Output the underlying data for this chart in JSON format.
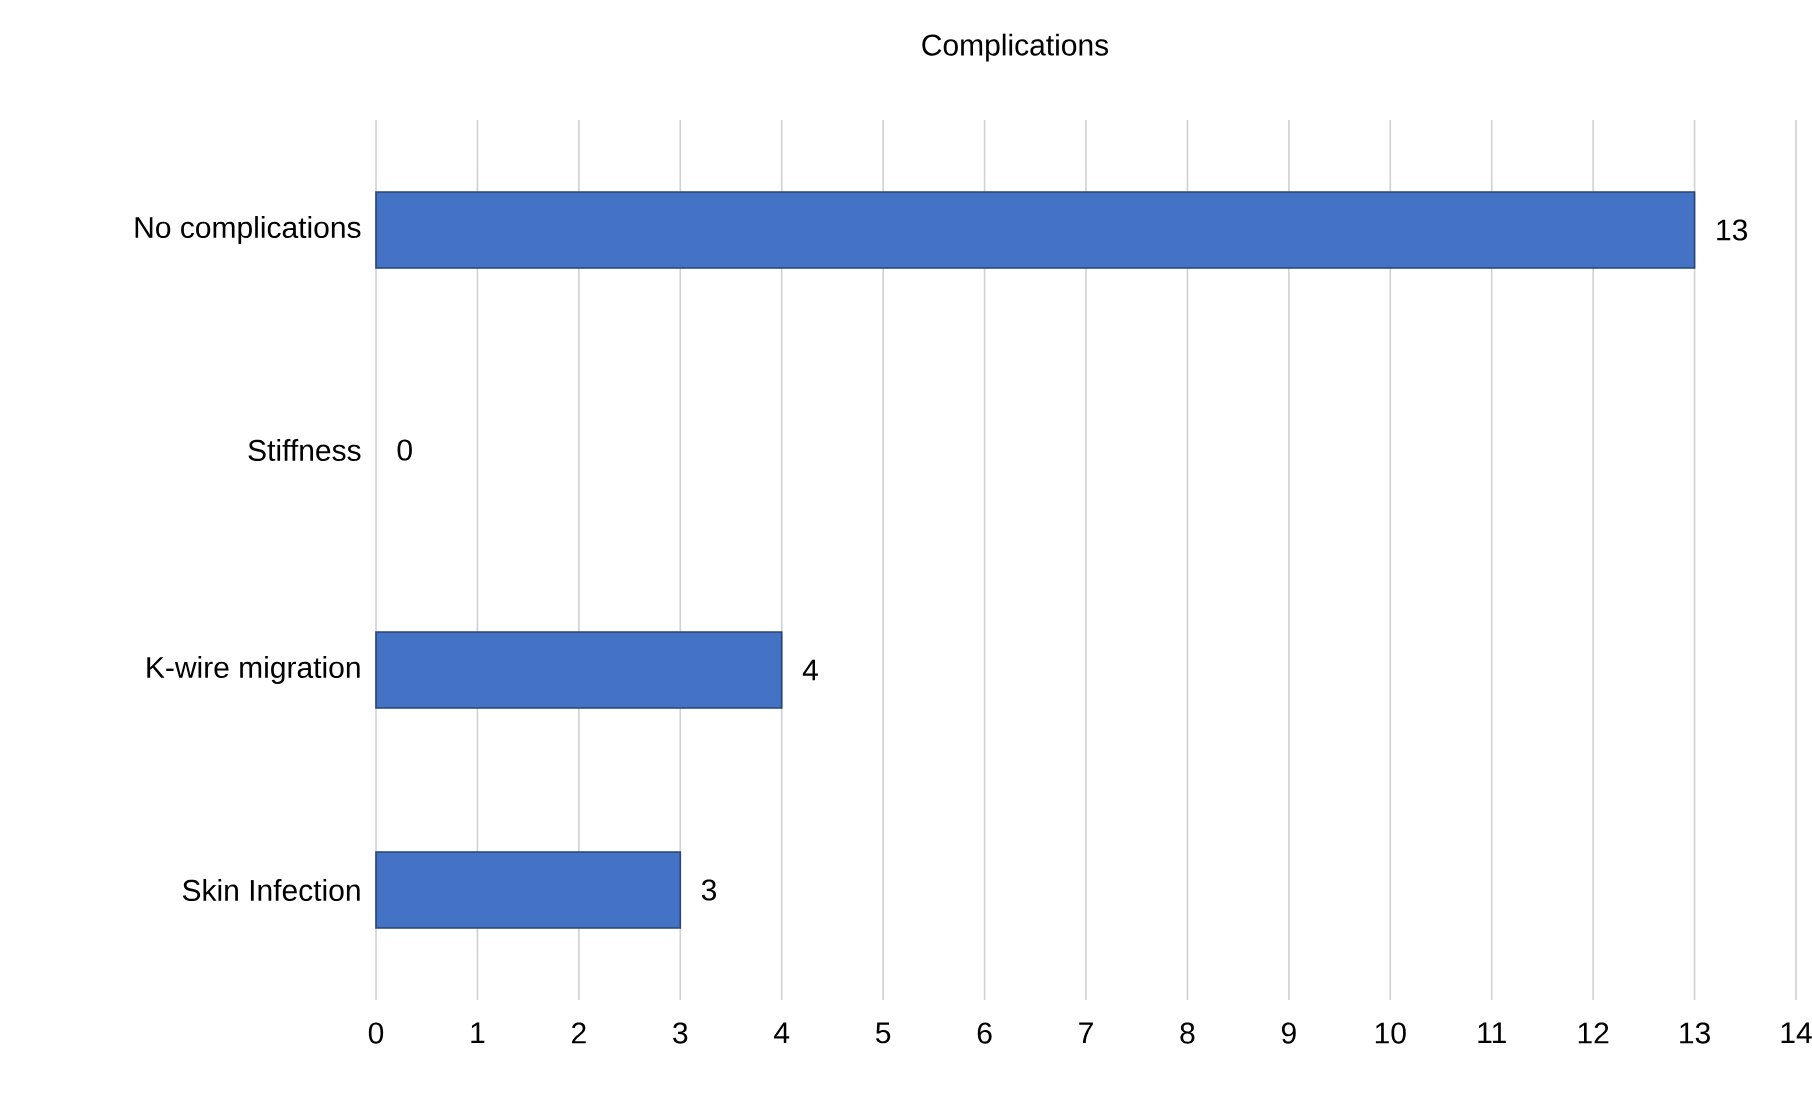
{
  "chart_data": {
    "type": "bar",
    "orientation": "horizontal",
    "title": "Complications",
    "categories": [
      "No complications",
      "Stiffness",
      "K-wire migration",
      "Skin Infection"
    ],
    "values": [
      13,
      0,
      4,
      3
    ],
    "color": "#4472c4",
    "xlim": [
      0,
      14
    ],
    "xticks": [
      0,
      1,
      2,
      3,
      4,
      5,
      6,
      7,
      8,
      9,
      10,
      11,
      12,
      13,
      14
    ],
    "grid": "x",
    "data_labels": true
  }
}
